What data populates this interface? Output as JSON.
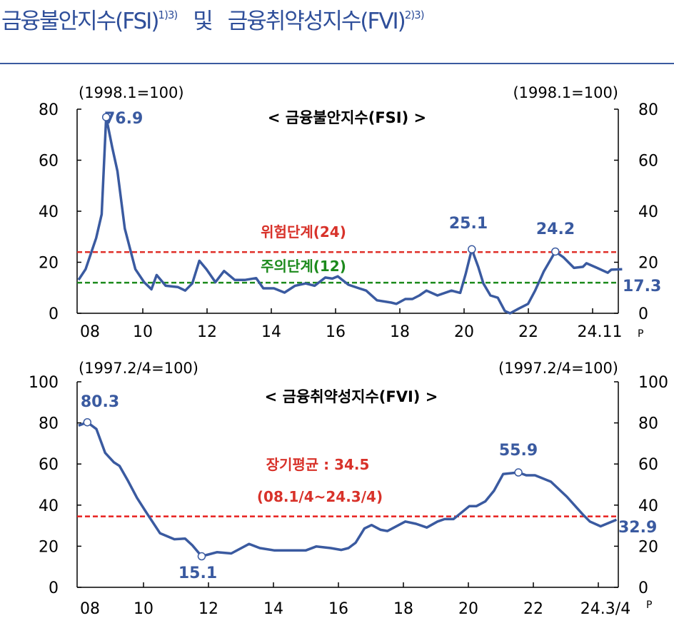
{
  "title": {
    "part1": "금융불안지수(FSI)",
    "sup1": "1)3)",
    "conj": "및",
    "part2": "금융취약성지수(FVI)",
    "sup2": "2)3)"
  },
  "colors": {
    "line": "#3a5aa0",
    "danger": "#e0302a",
    "caution": "#1c8a1c",
    "average": "#e8201e"
  },
  "chart_data": [
    {
      "type": "line",
      "title": "< 금융불안지수(FSI)  >",
      "base_left": "(1998.1=100)",
      "base_right": "(1998.1=100)",
      "ylim": [
        0,
        80
      ],
      "yticks": [
        "0",
        "20",
        "40",
        "60",
        "80"
      ],
      "xticks": [
        "08",
        "10",
        "12",
        "14",
        "16",
        "18",
        "20",
        "22",
        "24.11"
      ],
      "xtick_sup": "P",
      "thresholds": [
        {
          "label": "위험단계(24)",
          "value": 24,
          "color": "danger"
        },
        {
          "label": "주의단계(12)",
          "value": 12,
          "color": "caution"
        }
      ],
      "annotations": [
        {
          "label": "76.9",
          "x": 2008.86,
          "y": 76.9,
          "marker": true
        },
        {
          "label": "25.1",
          "x": 2020.24,
          "y": 25.1,
          "marker": true
        },
        {
          "label": "24.2",
          "x": 2022.84,
          "y": 24.2,
          "marker": true
        },
        {
          "label": "17.3",
          "x": 2024.92,
          "y": 17.3,
          "marker": false
        }
      ],
      "series": [
        {
          "name": "FSI",
          "x": [
            2008.0,
            2008.22,
            2008.55,
            2008.72,
            2008.86,
            2009.05,
            2009.21,
            2009.44,
            2009.77,
            2010.04,
            2010.27,
            2010.43,
            2010.71,
            2011.09,
            2011.32,
            2011.54,
            2011.76,
            2011.98,
            2012.26,
            2012.53,
            2012.86,
            2013.19,
            2013.53,
            2013.75,
            2014.08,
            2014.41,
            2014.74,
            2015.07,
            2015.35,
            2015.68,
            2015.9,
            2016.07,
            2016.4,
            2016.73,
            2016.95,
            2017.29,
            2017.73,
            2017.89,
            2018.17,
            2018.39,
            2018.61,
            2018.83,
            2019.17,
            2019.61,
            2019.88,
            2020.05,
            2020.24,
            2020.44,
            2020.6,
            2020.82,
            2021.05,
            2021.27,
            2021.43,
            2021.71,
            2021.99,
            2022.21,
            2022.48,
            2022.84,
            2023.09,
            2023.42,
            2023.7,
            2023.81,
            2024.14,
            2024.47,
            2024.58,
            2024.92
          ],
          "y": [
            13.1,
            17.3,
            29.5,
            38.8,
            76.9,
            65,
            55.7,
            33.2,
            17.3,
            12.2,
            9.4,
            15,
            10.8,
            10.3,
            8.9,
            11.7,
            20.6,
            17.3,
            12.2,
            16.6,
            13.1,
            13.1,
            13.8,
            9.8,
            9.8,
            8.1,
            10.8,
            11.7,
            10.8,
            14,
            13.6,
            14.5,
            11.2,
            9.8,
            8.9,
            5.1,
            4.2,
            3.7,
            5.6,
            5.6,
            7,
            8.9,
            7,
            8.9,
            8,
            15.4,
            25.1,
            18.2,
            11.7,
            7,
            6.1,
            0.9,
            0,
            1.9,
            3.7,
            8.9,
            16.4,
            24.2,
            22,
            17.8,
            18.2,
            19.6,
            17.8,
            15.9,
            17.1,
            17.3
          ]
        }
      ]
    },
    {
      "type": "line",
      "title": "< 금융취약성지수(FVI)  >",
      "base_left": "(1997.2/4=100)",
      "base_right": "(1997.2/4=100)",
      "ylim": [
        0,
        100
      ],
      "yticks": [
        "0",
        "20",
        "40",
        "60",
        "80",
        "100"
      ],
      "xticks": [
        "08",
        "10",
        "12",
        "14",
        "16",
        "18",
        "20",
        "22",
        "24.3/4"
      ],
      "xtick_sup": "P",
      "thresholds": [
        {
          "label": "장기평균 : 34.5",
          "sublabel": "(08.1/4~24.3/4)",
          "value": 34.5,
          "color": "average"
        }
      ],
      "annotations": [
        {
          "label": "80.3",
          "x": 2008.27,
          "y": 80.3,
          "marker": true
        },
        {
          "label": "15.1",
          "x": 2011.79,
          "y": 15.1,
          "marker": true
        },
        {
          "label": "55.9",
          "x": 2021.54,
          "y": 55.9,
          "marker": true
        },
        {
          "label": "32.9",
          "x": 2024.56,
          "y": 32.9,
          "marker": false
        }
      ],
      "series": [
        {
          "name": "FVI",
          "x": [
            2008.0,
            2008.27,
            2008.55,
            2008.82,
            2009.09,
            2009.26,
            2009.53,
            2009.8,
            2010.08,
            2010.51,
            2010.95,
            2011.28,
            2011.5,
            2011.79,
            2012.26,
            2012.7,
            2013.25,
            2013.58,
            2014.02,
            2014.56,
            2015.0,
            2015.32,
            2015.76,
            2016.09,
            2016.31,
            2016.53,
            2016.8,
            2017.02,
            2017.3,
            2017.51,
            2018.06,
            2018.39,
            2018.72,
            2019.05,
            2019.27,
            2019.54,
            2020.03,
            2020.25,
            2020.52,
            2020.79,
            2021.07,
            2021.54,
            2021.78,
            2022.05,
            2022.54,
            2023.03,
            2023.52,
            2023.74,
            2024.07,
            2024.56
          ],
          "y": [
            78.7,
            80.3,
            77,
            65.4,
            60.8,
            59.1,
            51.6,
            43.5,
            36.6,
            26.3,
            23.4,
            23.7,
            20.5,
            15.1,
            17.1,
            16.5,
            21.1,
            19.1,
            18,
            18,
            18,
            19.9,
            19.1,
            18.2,
            19.1,
            21.7,
            28.6,
            30.3,
            28,
            27.4,
            32,
            30.9,
            29.1,
            32,
            33.2,
            33.2,
            39.5,
            39.5,
            41.8,
            47,
            55.1,
            55.9,
            54.5,
            54.5,
            51.4,
            44.1,
            35.5,
            32,
            29.7,
            32.9
          ]
        }
      ]
    }
  ]
}
